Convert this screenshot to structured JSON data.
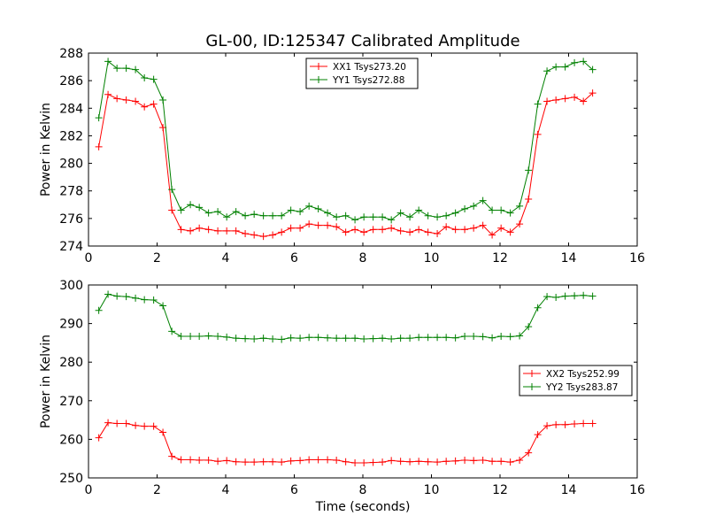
{
  "figure": {
    "title": "GL-00, ID:125347 Calibrated Amplitude"
  },
  "colors": {
    "red": "#ff0000",
    "green": "#008000"
  },
  "chart_data": [
    {
      "type": "line",
      "ylabel": "Power in Kelvin",
      "xlabel": "",
      "xlim": [
        0,
        16
      ],
      "ylim": [
        274,
        288
      ],
      "xticks": [
        0,
        2,
        4,
        6,
        8,
        10,
        12,
        14,
        16
      ],
      "yticks": [
        274,
        276,
        278,
        280,
        282,
        284,
        286,
        288
      ],
      "grid": false,
      "legend": {
        "location": "upper-center"
      },
      "series": [
        {
          "name": "XX1 Tsys273.20",
          "color": "#ff0000",
          "x": [
            0.3,
            0.57,
            0.83,
            1.1,
            1.37,
            1.63,
            1.9,
            2.17,
            2.43,
            2.7,
            2.97,
            3.23,
            3.5,
            3.77,
            4.03,
            4.3,
            4.57,
            4.83,
            5.1,
            5.37,
            5.63,
            5.9,
            6.17,
            6.43,
            6.7,
            6.97,
            7.23,
            7.5,
            7.77,
            8.03,
            8.3,
            8.57,
            8.83,
            9.1,
            9.37,
            9.63,
            9.9,
            10.17,
            10.43,
            10.7,
            10.97,
            11.23,
            11.5,
            11.77,
            12.03,
            12.3,
            12.57,
            12.83,
            13.1,
            13.37,
            13.63,
            13.9,
            14.17,
            14.43,
            14.7
          ],
          "y": [
            281.2,
            285.0,
            284.7,
            284.6,
            284.5,
            284.1,
            284.3,
            282.6,
            276.6,
            275.2,
            275.1,
            275.3,
            275.2,
            275.1,
            275.1,
            275.1,
            274.9,
            274.8,
            274.7,
            274.8,
            275.0,
            275.3,
            275.3,
            275.6,
            275.5,
            275.5,
            275.4,
            275.0,
            275.2,
            275.0,
            275.2,
            275.2,
            275.3,
            275.1,
            275.0,
            275.2,
            275.0,
            274.9,
            275.4,
            275.2,
            275.2,
            275.3,
            275.5,
            274.8,
            275.3,
            275.0,
            275.6,
            277.4,
            282.1,
            284.5,
            284.6,
            284.7,
            284.8,
            284.5,
            285.1
          ]
        },
        {
          "name": "YY1 Tsys272.88",
          "color": "#008000",
          "x": [
            0.3,
            0.57,
            0.83,
            1.1,
            1.37,
            1.63,
            1.9,
            2.17,
            2.43,
            2.7,
            2.97,
            3.23,
            3.5,
            3.77,
            4.03,
            4.3,
            4.57,
            4.83,
            5.1,
            5.37,
            5.63,
            5.9,
            6.17,
            6.43,
            6.7,
            6.97,
            7.23,
            7.5,
            7.77,
            8.03,
            8.3,
            8.57,
            8.83,
            9.1,
            9.37,
            9.63,
            9.9,
            10.17,
            10.43,
            10.7,
            10.97,
            11.23,
            11.5,
            11.77,
            12.03,
            12.3,
            12.57,
            12.83,
            13.1,
            13.37,
            13.63,
            13.9,
            14.17,
            14.43,
            14.7
          ],
          "y": [
            283.3,
            287.4,
            286.9,
            286.9,
            286.8,
            286.2,
            286.1,
            284.6,
            278.1,
            276.6,
            277.0,
            276.8,
            276.4,
            276.5,
            276.1,
            276.5,
            276.2,
            276.3,
            276.2,
            276.2,
            276.2,
            276.6,
            276.5,
            276.9,
            276.7,
            276.4,
            276.1,
            276.2,
            275.9,
            276.1,
            276.1,
            276.1,
            275.9,
            276.4,
            276.1,
            276.6,
            276.2,
            276.1,
            276.2,
            276.4,
            276.7,
            276.9,
            277.3,
            276.6,
            276.6,
            276.4,
            276.9,
            279.5,
            284.3,
            286.7,
            287.0,
            287.0,
            287.3,
            287.4,
            286.8
          ]
        }
      ]
    },
    {
      "type": "line",
      "ylabel": "Power in Kelvin",
      "xlabel": "Time (seconds)",
      "xlim": [
        0,
        16
      ],
      "ylim": [
        250,
        300
      ],
      "xticks": [
        0,
        2,
        4,
        6,
        8,
        10,
        12,
        14,
        16
      ],
      "yticks": [
        250,
        260,
        270,
        280,
        290,
        300
      ],
      "grid": false,
      "legend": {
        "location": "center-right"
      },
      "series": [
        {
          "name": "XX2 Tsys252.99",
          "color": "#ff0000",
          "x": [
            0.3,
            0.57,
            0.83,
            1.1,
            1.37,
            1.63,
            1.9,
            2.17,
            2.43,
            2.7,
            2.97,
            3.23,
            3.5,
            3.77,
            4.03,
            4.3,
            4.57,
            4.83,
            5.1,
            5.37,
            5.63,
            5.9,
            6.17,
            6.43,
            6.7,
            6.97,
            7.23,
            7.5,
            7.77,
            8.03,
            8.3,
            8.57,
            8.83,
            9.1,
            9.37,
            9.63,
            9.9,
            10.17,
            10.43,
            10.7,
            10.97,
            11.23,
            11.5,
            11.77,
            12.03,
            12.3,
            12.57,
            12.83,
            13.1,
            13.37,
            13.63,
            13.9,
            14.17,
            14.43,
            14.7
          ],
          "y": [
            260.4,
            264.3,
            264.1,
            264.1,
            263.6,
            263.4,
            263.4,
            261.8,
            255.6,
            254.7,
            254.7,
            254.6,
            254.6,
            254.3,
            254.5,
            254.2,
            254.1,
            254.1,
            254.2,
            254.2,
            254.1,
            254.4,
            254.5,
            254.7,
            254.7,
            254.7,
            254.6,
            254.2,
            253.9,
            253.9,
            254.0,
            254.1,
            254.5,
            254.3,
            254.2,
            254.3,
            254.2,
            254.1,
            254.3,
            254.4,
            254.6,
            254.5,
            254.6,
            254.3,
            254.3,
            254.1,
            254.6,
            256.5,
            261.2,
            263.5,
            263.8,
            263.8,
            264.0,
            264.1,
            264.1
          ]
        },
        {
          "name": "YY2 Tsys283.87",
          "color": "#008000",
          "x": [
            0.3,
            0.57,
            0.83,
            1.1,
            1.37,
            1.63,
            1.9,
            2.17,
            2.43,
            2.7,
            2.97,
            3.23,
            3.5,
            3.77,
            4.03,
            4.3,
            4.57,
            4.83,
            5.1,
            5.37,
            5.63,
            5.9,
            6.17,
            6.43,
            6.7,
            6.97,
            7.23,
            7.5,
            7.77,
            8.03,
            8.3,
            8.57,
            8.83,
            9.1,
            9.37,
            9.63,
            9.9,
            10.17,
            10.43,
            10.7,
            10.97,
            11.23,
            11.5,
            11.77,
            12.03,
            12.3,
            12.57,
            12.83,
            13.1,
            13.37,
            13.63,
            13.9,
            14.17,
            14.43,
            14.7
          ],
          "y": [
            293.4,
            297.6,
            297.1,
            297.0,
            296.6,
            296.2,
            296.1,
            294.6,
            288.0,
            286.7,
            286.7,
            286.7,
            286.8,
            286.7,
            286.5,
            286.2,
            286.1,
            286.0,
            286.2,
            286.0,
            285.9,
            286.3,
            286.2,
            286.4,
            286.4,
            286.3,
            286.2,
            286.2,
            286.2,
            286.0,
            286.1,
            286.2,
            286.0,
            286.2,
            286.2,
            286.4,
            286.4,
            286.4,
            286.4,
            286.3,
            286.7,
            286.7,
            286.6,
            286.3,
            286.7,
            286.6,
            286.8,
            289.2,
            294.1,
            297.0,
            296.8,
            297.1,
            297.2,
            297.3,
            297.1
          ]
        }
      ]
    }
  ]
}
